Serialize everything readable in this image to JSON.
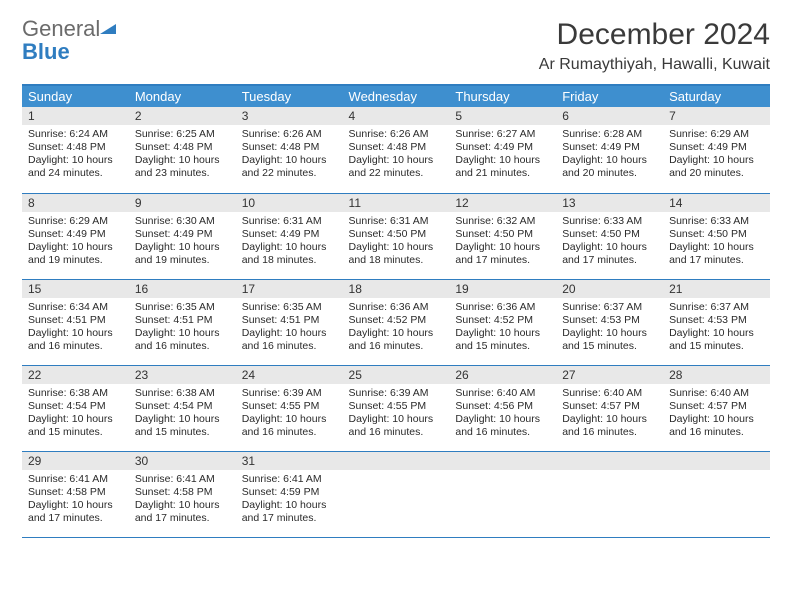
{
  "logo": {
    "general": "General",
    "blue": "Blue"
  },
  "title": "December 2024",
  "location": "Ar Rumaythiyah, Hawalli, Kuwait",
  "colors": {
    "header_bg": "#3e8fcf",
    "header_text": "#ffffff",
    "border": "#2f7dc0",
    "daynum_bg": "#e8e8e8",
    "logo_gray": "#6b6b6b",
    "logo_blue": "#2f7dc0"
  },
  "weekdays": [
    "Sunday",
    "Monday",
    "Tuesday",
    "Wednesday",
    "Thursday",
    "Friday",
    "Saturday"
  ],
  "weeks": [
    [
      {
        "n": 1,
        "sr": "6:24 AM",
        "ss": "4:48 PM",
        "dl": "10 hours and 24 minutes."
      },
      {
        "n": 2,
        "sr": "6:25 AM",
        "ss": "4:48 PM",
        "dl": "10 hours and 23 minutes."
      },
      {
        "n": 3,
        "sr": "6:26 AM",
        "ss": "4:48 PM",
        "dl": "10 hours and 22 minutes."
      },
      {
        "n": 4,
        "sr": "6:26 AM",
        "ss": "4:48 PM",
        "dl": "10 hours and 22 minutes."
      },
      {
        "n": 5,
        "sr": "6:27 AM",
        "ss": "4:49 PM",
        "dl": "10 hours and 21 minutes."
      },
      {
        "n": 6,
        "sr": "6:28 AM",
        "ss": "4:49 PM",
        "dl": "10 hours and 20 minutes."
      },
      {
        "n": 7,
        "sr": "6:29 AM",
        "ss": "4:49 PM",
        "dl": "10 hours and 20 minutes."
      }
    ],
    [
      {
        "n": 8,
        "sr": "6:29 AM",
        "ss": "4:49 PM",
        "dl": "10 hours and 19 minutes."
      },
      {
        "n": 9,
        "sr": "6:30 AM",
        "ss": "4:49 PM",
        "dl": "10 hours and 19 minutes."
      },
      {
        "n": 10,
        "sr": "6:31 AM",
        "ss": "4:49 PM",
        "dl": "10 hours and 18 minutes."
      },
      {
        "n": 11,
        "sr": "6:31 AM",
        "ss": "4:50 PM",
        "dl": "10 hours and 18 minutes."
      },
      {
        "n": 12,
        "sr": "6:32 AM",
        "ss": "4:50 PM",
        "dl": "10 hours and 17 minutes."
      },
      {
        "n": 13,
        "sr": "6:33 AM",
        "ss": "4:50 PM",
        "dl": "10 hours and 17 minutes."
      },
      {
        "n": 14,
        "sr": "6:33 AM",
        "ss": "4:50 PM",
        "dl": "10 hours and 17 minutes."
      }
    ],
    [
      {
        "n": 15,
        "sr": "6:34 AM",
        "ss": "4:51 PM",
        "dl": "10 hours and 16 minutes."
      },
      {
        "n": 16,
        "sr": "6:35 AM",
        "ss": "4:51 PM",
        "dl": "10 hours and 16 minutes."
      },
      {
        "n": 17,
        "sr": "6:35 AM",
        "ss": "4:51 PM",
        "dl": "10 hours and 16 minutes."
      },
      {
        "n": 18,
        "sr": "6:36 AM",
        "ss": "4:52 PM",
        "dl": "10 hours and 16 minutes."
      },
      {
        "n": 19,
        "sr": "6:36 AM",
        "ss": "4:52 PM",
        "dl": "10 hours and 15 minutes."
      },
      {
        "n": 20,
        "sr": "6:37 AM",
        "ss": "4:53 PM",
        "dl": "10 hours and 15 minutes."
      },
      {
        "n": 21,
        "sr": "6:37 AM",
        "ss": "4:53 PM",
        "dl": "10 hours and 15 minutes."
      }
    ],
    [
      {
        "n": 22,
        "sr": "6:38 AM",
        "ss": "4:54 PM",
        "dl": "10 hours and 15 minutes."
      },
      {
        "n": 23,
        "sr": "6:38 AM",
        "ss": "4:54 PM",
        "dl": "10 hours and 15 minutes."
      },
      {
        "n": 24,
        "sr": "6:39 AM",
        "ss": "4:55 PM",
        "dl": "10 hours and 16 minutes."
      },
      {
        "n": 25,
        "sr": "6:39 AM",
        "ss": "4:55 PM",
        "dl": "10 hours and 16 minutes."
      },
      {
        "n": 26,
        "sr": "6:40 AM",
        "ss": "4:56 PM",
        "dl": "10 hours and 16 minutes."
      },
      {
        "n": 27,
        "sr": "6:40 AM",
        "ss": "4:57 PM",
        "dl": "10 hours and 16 minutes."
      },
      {
        "n": 28,
        "sr": "6:40 AM",
        "ss": "4:57 PM",
        "dl": "10 hours and 16 minutes."
      }
    ],
    [
      {
        "n": 29,
        "sr": "6:41 AM",
        "ss": "4:58 PM",
        "dl": "10 hours and 17 minutes."
      },
      {
        "n": 30,
        "sr": "6:41 AM",
        "ss": "4:58 PM",
        "dl": "10 hours and 17 minutes."
      },
      {
        "n": 31,
        "sr": "6:41 AM",
        "ss": "4:59 PM",
        "dl": "10 hours and 17 minutes."
      },
      null,
      null,
      null,
      null
    ]
  ],
  "labels": {
    "sunrise": "Sunrise:",
    "sunset": "Sunset:",
    "daylight": "Daylight:"
  }
}
